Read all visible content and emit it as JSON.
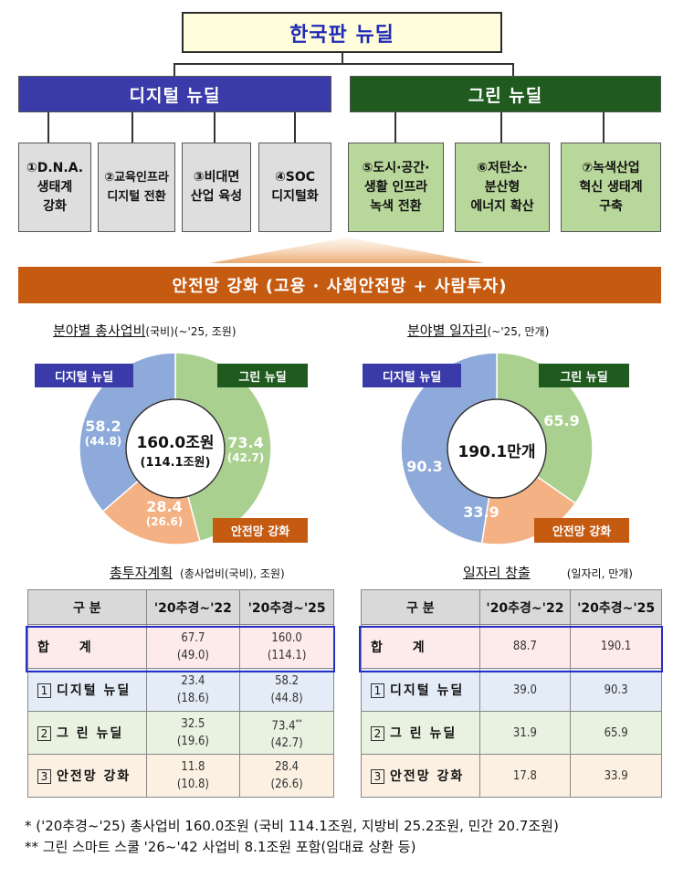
{
  "top_title": "한국판 뉴딜",
  "categories": {
    "digital": "디지털 뉴딜",
    "green": "그린 뉴딜"
  },
  "sub_items": {
    "d1": "①D.N.A.\n생태계\n강화",
    "d2": "②교육인프라\n디지털 전환",
    "d3": "③비대면\n산업 육성",
    "d4": "④SOC\n디지털화",
    "g1": "⑤도시·공간·\n생활 인프라\n녹색 전환",
    "g2": "⑥저탄소·\n분산형\n에너지 확산",
    "g3": "⑦녹색산업\n혁신 생태계\n구축"
  },
  "safety_bar": "안전망 강화 (고용 · 사회안전망 + 사람투자)",
  "chart_data": [
    {
      "type": "pie",
      "title_main": "분야별 총사업비",
      "title_sub": "(국비)(~'25, 조원)",
      "center_main": "160.0조원",
      "center_sub": "(114.1조원)",
      "categories": [
        "디지털 뉴딜",
        "그린 뉴딜",
        "안전망 강화"
      ],
      "values": [
        58.2,
        73.4,
        28.4
      ],
      "sub_values": [
        44.8,
        42.7,
        26.6
      ],
      "value_labels": [
        "58.2",
        "73.4",
        "28.4"
      ],
      "sub_labels": [
        "(44.8)",
        "(42.7)",
        "(26.6)"
      ],
      "colors": [
        "#8eaadb",
        "#a9d08e",
        "#f4b183"
      ]
    },
    {
      "type": "pie",
      "title_main": "분야별 일자리",
      "title_sub": "(~'25, 만개)",
      "center_main": "190.1만개",
      "categories": [
        "디지털 뉴딜",
        "그린 뉴딜",
        "안전망 강화"
      ],
      "values": [
        90.3,
        65.9,
        33.9
      ],
      "value_labels": [
        "90.3",
        "65.9",
        "33.9"
      ],
      "colors": [
        "#8eaadb",
        "#a9d08e",
        "#f4b183"
      ]
    }
  ],
  "investment_table": {
    "title": "총투자계획",
    "unit": "(총사업비(국비), 조원)",
    "headers": [
      "구 분",
      "'20추경~'22",
      "'20추경~'25"
    ],
    "rows": [
      {
        "label": "합 계",
        "c1": "67.7",
        "c1s": "(49.0)",
        "c2": "160.0",
        "c2s": "(114.1)",
        "c2mark": ""
      },
      {
        "num": "1",
        "label": "디지털 뉴딜",
        "c1": "23.4",
        "c1s": "(18.6)",
        "c2": "58.2",
        "c2s": "(44.8)",
        "c2mark": ""
      },
      {
        "num": "2",
        "label": "그 린 뉴딜",
        "c1": "32.5",
        "c1s": "(19.6)",
        "c2": "73.4",
        "c2s": "(42.7)",
        "c2mark": "**"
      },
      {
        "num": "3",
        "label": "안전망 강화",
        "c1": "11.8",
        "c1s": "(10.8)",
        "c2": "28.4",
        "c2s": "(26.6)",
        "c2mark": ""
      }
    ]
  },
  "jobs_table": {
    "title": "일자리 창출",
    "unit": "(일자리, 만개)",
    "headers": [
      "구 분",
      "'20추경~'22",
      "'20추경~'25"
    ],
    "rows": [
      {
        "label": "합 계",
        "c1": "88.7",
        "c2": "190.1"
      },
      {
        "num": "1",
        "label": "디지털 뉴딜",
        "c1": "39.0",
        "c2": "90.3"
      },
      {
        "num": "2",
        "label": "그 린 뉴딜",
        "c1": "31.9",
        "c2": "65.9"
      },
      {
        "num": "3",
        "label": "안전망 강화",
        "c1": "17.8",
        "c2": "33.9"
      }
    ]
  },
  "footnotes": [
    " * ('20추경~'25) 총사업비 160.0조원 (국비 114.1조원, 지방비 25.2조원, 민간 20.7조원)",
    "** 그린 스마트 스쿨 '26~'42 사업비 8.1조원 포함(임대료 상환 등)"
  ]
}
